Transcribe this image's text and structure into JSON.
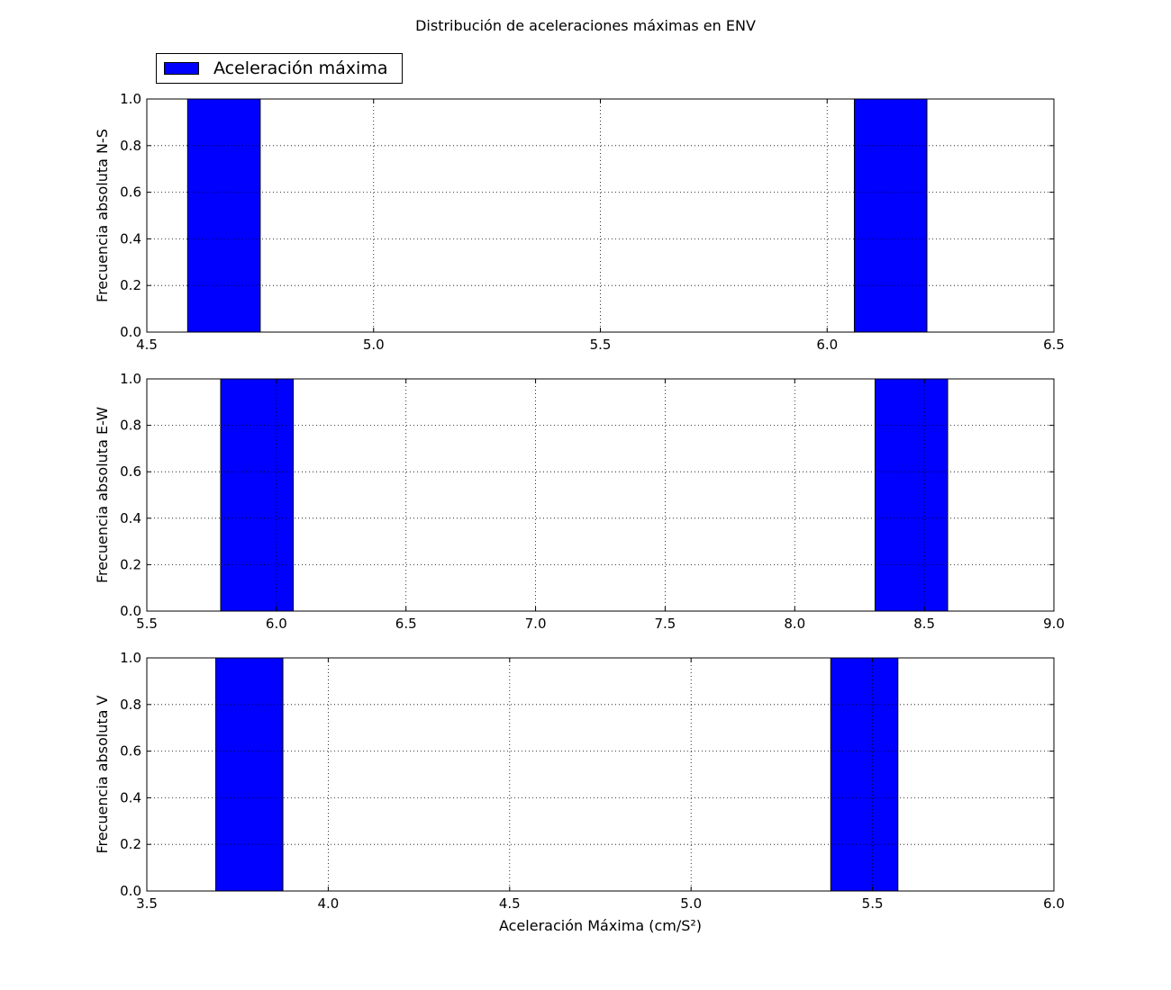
{
  "figure": {
    "title": "Distribución de aceleraciones máximas en ENV",
    "legend_label": "Aceleración máxima",
    "legend_placement": "top-left, above first panel",
    "xlabel": "Aceleración Máxima (cm/S²)",
    "bar_color": "#0000ff",
    "edge_color": "#000000"
  },
  "chart_data": [
    {
      "type": "bar",
      "ylabel": "Frecuencia absoluta N-S",
      "xlim": [
        4.5,
        6.5
      ],
      "ylim": [
        0,
        1.0
      ],
      "xticks": [
        4.5,
        5.0,
        5.5,
        6.0,
        6.5
      ],
      "xtick_labels": [
        "4.5",
        "5.0",
        "5.5",
        "6.0",
        "6.5"
      ],
      "yticks": [
        0.0,
        0.2,
        0.4,
        0.6,
        0.8,
        1.0
      ],
      "ytick_labels": [
        "0.0",
        "0.2",
        "0.4",
        "0.6",
        "0.8",
        "1.0"
      ],
      "grid": true,
      "bars": [
        {
          "x0": 4.59,
          "x1": 4.75,
          "value": 1.0
        },
        {
          "x0": 6.06,
          "x1": 6.22,
          "value": 1.0
        }
      ]
    },
    {
      "type": "bar",
      "ylabel": "Frecuencia absoluta E-W",
      "xlim": [
        5.5,
        9.0
      ],
      "ylim": [
        0,
        1.0
      ],
      "xticks": [
        5.5,
        6.0,
        6.5,
        7.0,
        7.5,
        8.0,
        8.5,
        9.0
      ],
      "xtick_labels": [
        "5.5",
        "6.0",
        "6.5",
        "7.0",
        "7.5",
        "8.0",
        "8.5",
        "9.0"
      ],
      "yticks": [
        0.0,
        0.2,
        0.4,
        0.6,
        0.8,
        1.0
      ],
      "ytick_labels": [
        "0.0",
        "0.2",
        "0.4",
        "0.6",
        "0.8",
        "1.0"
      ],
      "grid": true,
      "bars": [
        {
          "x0": 5.785,
          "x1": 6.065,
          "value": 1.0
        },
        {
          "x0": 8.31,
          "x1": 8.59,
          "value": 1.0
        }
      ]
    },
    {
      "type": "bar",
      "ylabel": "Frecuencia absoluta V",
      "xlim": [
        3.5,
        6.0
      ],
      "ylim": [
        0,
        1.0
      ],
      "xticks": [
        3.5,
        4.0,
        4.5,
        5.0,
        5.5,
        6.0
      ],
      "xtick_labels": [
        "3.5",
        "4.0",
        "4.5",
        "5.0",
        "5.5",
        "6.0"
      ],
      "yticks": [
        0.0,
        0.2,
        0.4,
        0.6,
        0.8,
        1.0
      ],
      "ytick_labels": [
        "0.0",
        "0.2",
        "0.4",
        "0.6",
        "0.8",
        "1.0"
      ],
      "grid": true,
      "bars": [
        {
          "x0": 3.69,
          "x1": 3.875,
          "value": 1.0
        },
        {
          "x0": 5.385,
          "x1": 5.57,
          "value": 1.0
        }
      ]
    }
  ]
}
